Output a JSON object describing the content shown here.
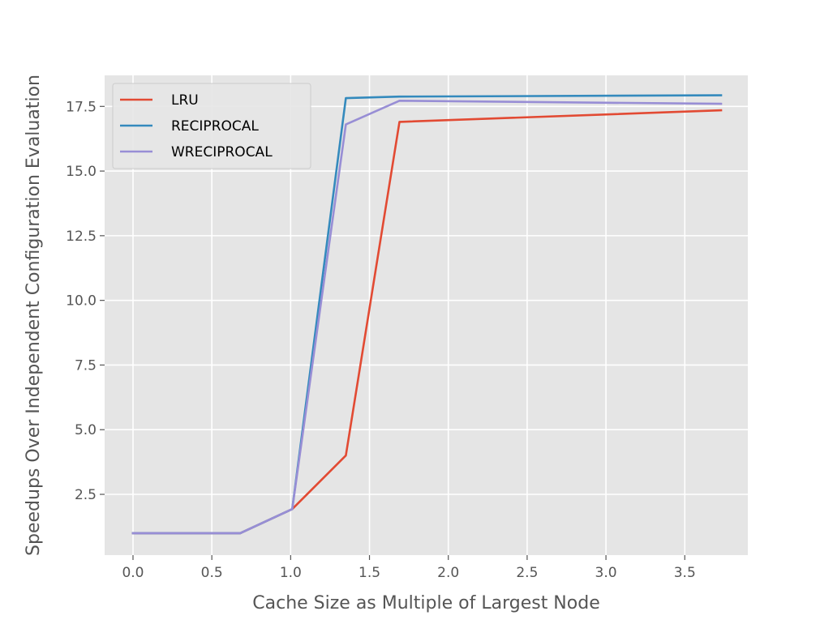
{
  "chart_data": {
    "type": "line",
    "title": "",
    "xlabel": "Cache Size as Multiple of Largest Node",
    "ylabel": "Speedups Over Independent Configuration Evaluation",
    "xlim": [
      -0.18,
      3.9
    ],
    "ylim": [
      0.15,
      18.7
    ],
    "xticks": [
      0.0,
      0.5,
      1.0,
      1.5,
      2.0,
      2.5,
      3.0,
      3.5
    ],
    "xtick_labels": [
      "0.0",
      "0.5",
      "1.0",
      "1.5",
      "2.0",
      "2.5",
      "3.0",
      "3.5"
    ],
    "yticks": [
      2.5,
      5.0,
      7.5,
      10.0,
      12.5,
      15.0,
      17.5
    ],
    "ytick_labels": [
      "2.5",
      "5.0",
      "7.5",
      "10.0",
      "12.5",
      "15.0",
      "17.5"
    ],
    "grid": true,
    "legend_position": "top-left",
    "series": [
      {
        "name": "LRU",
        "color": "#E24A33",
        "x": [
          0.0,
          0.68,
          1.01,
          1.35,
          1.69,
          3.73
        ],
        "y": [
          1.0,
          1.0,
          1.93,
          4.0,
          16.9,
          17.35
        ]
      },
      {
        "name": "RECIPROCAL",
        "color": "#348ABD",
        "x": [
          0.0,
          0.68,
          1.01,
          1.35,
          1.69,
          3.73
        ],
        "y": [
          1.0,
          1.0,
          1.93,
          17.82,
          17.88,
          17.93
        ]
      },
      {
        "name": "WRECIPROCAL",
        "color": "#988ED5",
        "x": [
          0.0,
          0.68,
          1.01,
          1.35,
          1.69,
          3.73
        ],
        "y": [
          1.0,
          1.0,
          1.93,
          16.8,
          17.72,
          17.6
        ]
      }
    ]
  }
}
